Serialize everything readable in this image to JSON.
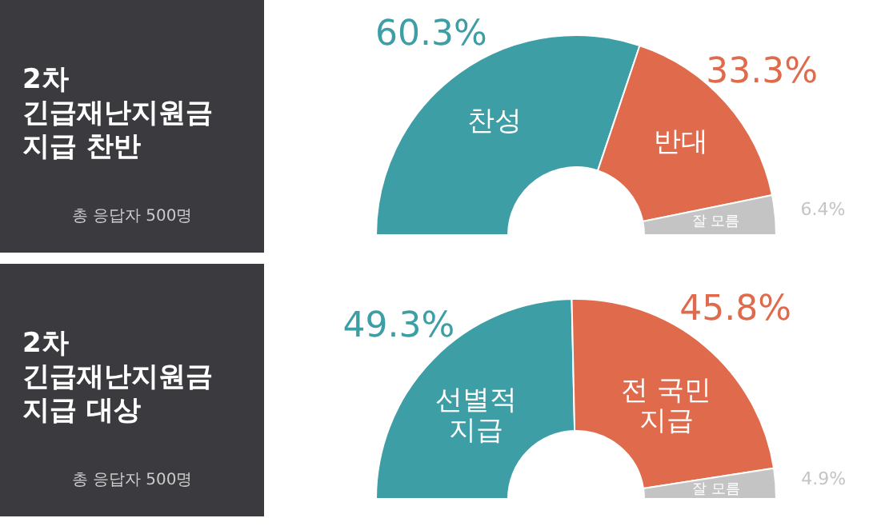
{
  "chart_data": [
    {
      "type": "donut",
      "title": "2차\n긴급재난지원금\n지급 찬반",
      "annotations": [
        "총 응답자 500명"
      ],
      "categories": [
        "찬성",
        "반대",
        "잘 모름"
      ],
      "values": [
        60.3,
        33.3,
        6.4
      ],
      "colors": [
        "#3e9ea6",
        "#e06a4c",
        "#c4c4c4"
      ],
      "value_labels": [
        "60.3%",
        "33.3%",
        "6.4%"
      ]
    },
    {
      "type": "donut",
      "title": "2차\n긴급재난지원금\n지급 대상",
      "annotations": [
        "총 응답자 500명"
      ],
      "categories": [
        "선별적\n지급",
        "전 국민\n지급",
        "잘 모름"
      ],
      "values": [
        49.3,
        45.8,
        4.9
      ],
      "colors": [
        "#3e9ea6",
        "#e06a4c",
        "#c4c4c4"
      ],
      "value_labels": [
        "49.3%",
        "45.8%",
        "4.9%"
      ]
    }
  ]
}
